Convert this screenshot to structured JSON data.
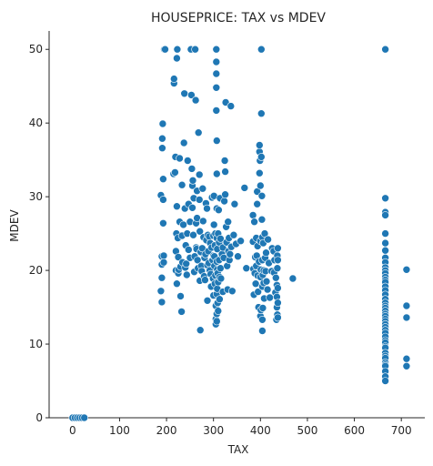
{
  "chart_data": {
    "type": "scatter",
    "title": "HOUSEPRICE: TAX vs MDEV",
    "xlabel": "TAX",
    "ylabel": "MDEV",
    "xlim": [
      -50,
      750
    ],
    "ylim": [
      0,
      52.5
    ],
    "xticks": [
      0,
      100,
      200,
      300,
      400,
      500,
      600,
      700
    ],
    "yticks": [
      0,
      10,
      20,
      30,
      40,
      50
    ],
    "grid": false,
    "marker_color": "#1f77b4",
    "marker_edge": "#ffffff",
    "points": [
      [
        0,
        0
      ],
      [
        5,
        0
      ],
      [
        10,
        0
      ],
      [
        15,
        0
      ],
      [
        20,
        0
      ],
      [
        25,
        0
      ],
      [
        188,
        30.2
      ],
      [
        188,
        17.2
      ],
      [
        190,
        15.7
      ],
      [
        190,
        21.9
      ],
      [
        190,
        20.8
      ],
      [
        190,
        19.0
      ],
      [
        191,
        37.9
      ],
      [
        191,
        36.6
      ],
      [
        192,
        39.9
      ],
      [
        193,
        32.4
      ],
      [
        193,
        26.4
      ],
      [
        193,
        29.6
      ],
      [
        194,
        22.0
      ],
      [
        194,
        21.1
      ],
      [
        195,
        50.0
      ],
      [
        197,
        50.0
      ],
      [
        215,
        33.1
      ],
      [
        216,
        45.4
      ],
      [
        216,
        46.0
      ],
      [
        218,
        33.3
      ],
      [
        219,
        35.4
      ],
      [
        220,
        22.6
      ],
      [
        220,
        20.0
      ],
      [
        221,
        25.0
      ],
      [
        222,
        28.7
      ],
      [
        222,
        18.2
      ],
      [
        222,
        48.8
      ],
      [
        223,
        50.0
      ],
      [
        224,
        24.4
      ],
      [
        225,
        21.8
      ],
      [
        225,
        19.6
      ],
      [
        226,
        20.1
      ],
      [
        228,
        35.2
      ],
      [
        228,
        26.6
      ],
      [
        230,
        20.5
      ],
      [
        230,
        16.5
      ],
      [
        232,
        14.4
      ],
      [
        233,
        31.6
      ],
      [
        233,
        24.7
      ],
      [
        234,
        21.1
      ],
      [
        236,
        26.2
      ],
      [
        237,
        37.3
      ],
      [
        238,
        44.0
      ],
      [
        239,
        28.4
      ],
      [
        240,
        20.4
      ],
      [
        241,
        23.4
      ],
      [
        242,
        20.9
      ],
      [
        243,
        19.4
      ],
      [
        244,
        25.0
      ],
      [
        245,
        34.9
      ],
      [
        247,
        29.0
      ],
      [
        247,
        22.8
      ],
      [
        250,
        21.7
      ],
      [
        250,
        26.6
      ],
      [
        252,
        50.0
      ],
      [
        253,
        43.8
      ],
      [
        254,
        33.8
      ],
      [
        255,
        31.5
      ],
      [
        255,
        28.5
      ],
      [
        256,
        32.2
      ],
      [
        257,
        24.8
      ],
      [
        258,
        29.8
      ],
      [
        259,
        19.8
      ],
      [
        260,
        21.9
      ],
      [
        261,
        50.0
      ],
      [
        262,
        43.1
      ],
      [
        263,
        23.1
      ],
      [
        263,
        26.4
      ],
      [
        264,
        22.9
      ],
      [
        265,
        30.8
      ],
      [
        265,
        27.1
      ],
      [
        266,
        21.4
      ],
      [
        267,
        20.3
      ],
      [
        268,
        38.7
      ],
      [
        270,
        33.0
      ],
      [
        270,
        29.6
      ],
      [
        271,
        25.3
      ],
      [
        271,
        18.6
      ],
      [
        272,
        11.9
      ],
      [
        273,
        22.5
      ],
      [
        274,
        20.6
      ],
      [
        275,
        19.9
      ],
      [
        276,
        23.0
      ],
      [
        277,
        31.1
      ],
      [
        278,
        26.7
      ],
      [
        279,
        24.5
      ],
      [
        280,
        19.2
      ],
      [
        281,
        21.7
      ],
      [
        282,
        18.7
      ],
      [
        283,
        22.2
      ],
      [
        284,
        29.1
      ],
      [
        285,
        24.1
      ],
      [
        286,
        28.4
      ],
      [
        287,
        20.7
      ],
      [
        287,
        15.9
      ],
      [
        288,
        24.8
      ],
      [
        289,
        22.6
      ],
      [
        290,
        21.0
      ],
      [
        291,
        24.6
      ],
      [
        292,
        20.0
      ],
      [
        293,
        23.7
      ],
      [
        294,
        19.5
      ],
      [
        295,
        17.8
      ],
      [
        296,
        23.1
      ],
      [
        297,
        29.9
      ],
      [
        298,
        21.4
      ],
      [
        299,
        18.9
      ],
      [
        300,
        24.7
      ],
      [
        300,
        22.0
      ],
      [
        300,
        16.6
      ],
      [
        301,
        30.1
      ],
      [
        301,
        26.2
      ],
      [
        302,
        20.6
      ],
      [
        302,
        21.9
      ],
      [
        303,
        23.4
      ],
      [
        303,
        18.2
      ],
      [
        304,
        25.0
      ],
      [
        304,
        19.3
      ],
      [
        305,
        13.4
      ],
      [
        305,
        15.2
      ],
      [
        305,
        12.7
      ],
      [
        306,
        50.0
      ],
      [
        306,
        48.3
      ],
      [
        306,
        46.7
      ],
      [
        306,
        44.8
      ],
      [
        306,
        41.7
      ],
      [
        307,
        37.6
      ],
      [
        307,
        33.1
      ],
      [
        307,
        28.4
      ],
      [
        307,
        24.4
      ],
      [
        307,
        21.2
      ],
      [
        307,
        14.1
      ],
      [
        307,
        13.1
      ],
      [
        307,
        16.8
      ],
      [
        308,
        20.1
      ],
      [
        308,
        17.5
      ],
      [
        308,
        22.9
      ],
      [
        309,
        19.6
      ],
      [
        309,
        15.6
      ],
      [
        310,
        25.0
      ],
      [
        310,
        14.5
      ],
      [
        310,
        18.4
      ],
      [
        311,
        28.2
      ],
      [
        312,
        21.4
      ],
      [
        312,
        23.8
      ],
      [
        313,
        19.1
      ],
      [
        313,
        16.1
      ],
      [
        314,
        29.8
      ],
      [
        315,
        24.3
      ],
      [
        315,
        20.3
      ],
      [
        316,
        18.9
      ],
      [
        318,
        22.2
      ],
      [
        320,
        23.1
      ],
      [
        320,
        17.1
      ],
      [
        322,
        21.7
      ],
      [
        323,
        29.4
      ],
      [
        324,
        34.9
      ],
      [
        325,
        33.4
      ],
      [
        325,
        30.3
      ],
      [
        326,
        42.8
      ],
      [
        327,
        25.9
      ],
      [
        328,
        23.8
      ],
      [
        329,
        20.6
      ],
      [
        330,
        17.4
      ],
      [
        331,
        26.6
      ],
      [
        332,
        22.6
      ],
      [
        333,
        24.4
      ],
      [
        334,
        21.4
      ],
      [
        335,
        22.2
      ],
      [
        337,
        42.3
      ],
      [
        338,
        23.2
      ],
      [
        340,
        17.2
      ],
      [
        343,
        24.8
      ],
      [
        345,
        29.0
      ],
      [
        348,
        23.6
      ],
      [
        352,
        21.9
      ],
      [
        358,
        24.0
      ],
      [
        366,
        31.2
      ],
      [
        370,
        20.3
      ],
      [
        384,
        27.5
      ],
      [
        384,
        23.9
      ],
      [
        385,
        20.2
      ],
      [
        386,
        16.7
      ],
      [
        387,
        26.6
      ],
      [
        388,
        19.6
      ],
      [
        389,
        21.8
      ],
      [
        390,
        18.2
      ],
      [
        391,
        20.6
      ],
      [
        391,
        24.4
      ],
      [
        392,
        22.0
      ],
      [
        393,
        30.7
      ],
      [
        393,
        29.0
      ],
      [
        394,
        19.3
      ],
      [
        394,
        23.3
      ],
      [
        395,
        17.1
      ],
      [
        396,
        15.0
      ],
      [
        397,
        21.2
      ],
      [
        398,
        33.2
      ],
      [
        398,
        36.1
      ],
      [
        398,
        37.0
      ],
      [
        399,
        34.9
      ],
      [
        400,
        31.5
      ],
      [
        400,
        19.1
      ],
      [
        400,
        24.0
      ],
      [
        400,
        13.8
      ],
      [
        401,
        20.1
      ],
      [
        401,
        14.6
      ],
      [
        402,
        50.0
      ],
      [
        402,
        41.3
      ],
      [
        402,
        35.4
      ],
      [
        403,
        30.1
      ],
      [
        403,
        26.9
      ],
      [
        404,
        24.5
      ],
      [
        404,
        21.4
      ],
      [
        404,
        17.8
      ],
      [
        404,
        13.3
      ],
      [
        404,
        11.8
      ],
      [
        405,
        19.4
      ],
      [
        405,
        14.9
      ],
      [
        406,
        23.7
      ],
      [
        407,
        20.0
      ],
      [
        407,
        18.3
      ],
      [
        408,
        16.2
      ],
      [
        409,
        25.0
      ],
      [
        410,
        21.7
      ],
      [
        411,
        19.9
      ],
      [
        412,
        22.4
      ],
      [
        413,
        18.5
      ],
      [
        415,
        17.4
      ],
      [
        416,
        24.2
      ],
      [
        418,
        21.0
      ],
      [
        420,
        16.3
      ],
      [
        424,
        19.9
      ],
      [
        425,
        23.0
      ],
      [
        428,
        22.6
      ],
      [
        429,
        19.7
      ],
      [
        430,
        21.4
      ],
      [
        432,
        17.0
      ],
      [
        433,
        19.0
      ],
      [
        434,
        13.3
      ],
      [
        435,
        15.0
      ],
      [
        435,
        16.4
      ],
      [
        435,
        18.0
      ],
      [
        436,
        20.3
      ],
      [
        436,
        22.0
      ],
      [
        436,
        14.0
      ],
      [
        437,
        13.6
      ],
      [
        437,
        15.6
      ],
      [
        437,
        17.6
      ],
      [
        437,
        21.4
      ],
      [
        437,
        23.0
      ],
      [
        469,
        18.9
      ],
      [
        666,
        50.0
      ],
      [
        666,
        29.8
      ],
      [
        666,
        27.9
      ],
      [
        666,
        27.5
      ],
      [
        666,
        25.0
      ],
      [
        666,
        23.7
      ],
      [
        666,
        22.7
      ],
      [
        666,
        21.7
      ],
      [
        666,
        21.1
      ],
      [
        666,
        20.4
      ],
      [
        666,
        20.0
      ],
      [
        666,
        19.6
      ],
      [
        666,
        19.1
      ],
      [
        666,
        18.7
      ],
      [
        666,
        18.4
      ],
      [
        666,
        17.8
      ],
      [
        666,
        17.3
      ],
      [
        666,
        16.7
      ],
      [
        666,
        16.1
      ],
      [
        666,
        15.6
      ],
      [
        666,
        15.2
      ],
      [
        666,
        14.9
      ],
      [
        666,
        14.5
      ],
      [
        666,
        14.1
      ],
      [
        666,
        13.8
      ],
      [
        666,
        13.4
      ],
      [
        666,
        13.1
      ],
      [
        666,
        12.7
      ],
      [
        666,
        12.3
      ],
      [
        666,
        11.9
      ],
      [
        666,
        11.5
      ],
      [
        666,
        11.0
      ],
      [
        666,
        10.5
      ],
      [
        666,
        10.2
      ],
      [
        666,
        9.7
      ],
      [
        666,
        9.5
      ],
      [
        666,
        8.8
      ],
      [
        666,
        8.4
      ],
      [
        666,
        8.1
      ],
      [
        666,
        7.5
      ],
      [
        666,
        7.2
      ],
      [
        666,
        7.0
      ],
      [
        666,
        6.3
      ],
      [
        666,
        5.6
      ],
      [
        666,
        5.0
      ],
      [
        711,
        20.1
      ],
      [
        711,
        15.2
      ],
      [
        711,
        13.6
      ],
      [
        711,
        8.0
      ],
      [
        711,
        7.0
      ]
    ]
  }
}
